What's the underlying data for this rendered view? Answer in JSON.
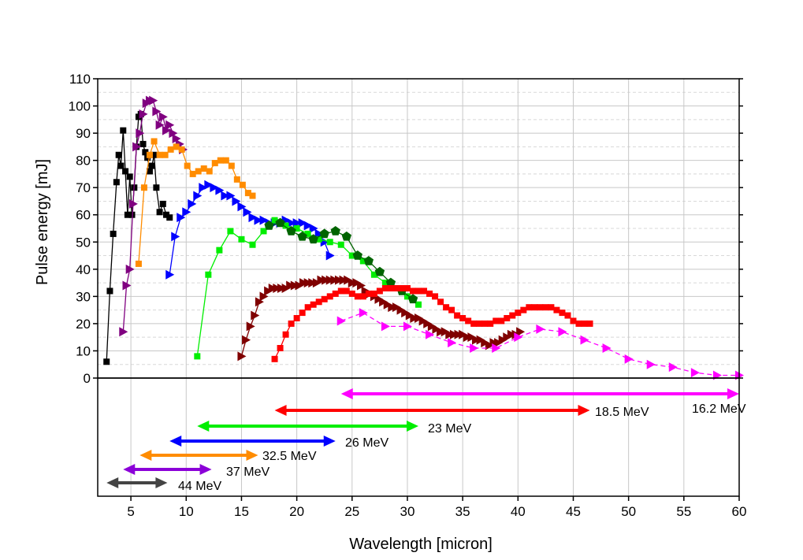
{
  "chart_data": {
    "type": "line",
    "xlabel": "Wavelength [micron]",
    "ylabel": "Pulse energy [mJ]",
    "xlim": [
      2,
      60
    ],
    "ylim": [
      0,
      110
    ],
    "xticks": [
      5,
      10,
      15,
      20,
      25,
      30,
      35,
      40,
      45,
      50,
      55,
      60
    ],
    "yticks": [
      0,
      10,
      20,
      30,
      40,
      50,
      60,
      70,
      80,
      90,
      100,
      110
    ],
    "grid": true,
    "series": [
      {
        "color": "#000000",
        "marker": "square",
        "dashed": false,
        "x": [
          2.8,
          3.1,
          3.4,
          3.7,
          3.9,
          4.1,
          4.3,
          4.5,
          4.7,
          4.9,
          5.1,
          5.3,
          5.5,
          5.7,
          5.9,
          6.1,
          6.3,
          6.5,
          6.7,
          6.9,
          7.1,
          7.3,
          7.6,
          7.9,
          8.2,
          8.5
        ],
        "y": [
          6,
          32,
          53,
          72,
          82,
          78,
          91,
          76,
          60,
          74,
          60,
          70,
          85,
          96,
          97,
          86,
          83,
          81,
          76,
          78,
          82,
          70,
          61,
          64,
          60,
          59
        ]
      },
      {
        "color": "#800080",
        "marker": "triangle-right",
        "dashed": false,
        "x": [
          4.3,
          4.6,
          4.9,
          5.2,
          5.5,
          5.8,
          6.1,
          6.4,
          6.7,
          7.0,
          7.3,
          7.6,
          7.9,
          8.2,
          8.5,
          8.8,
          9.1,
          9.4,
          9.7
        ],
        "y": [
          17,
          34,
          40,
          64,
          85,
          90,
          97,
          101,
          102,
          102,
          98,
          93,
          96,
          91,
          93,
          90,
          88,
          86,
          84
        ]
      },
      {
        "color": "#ff8c00",
        "marker": "square",
        "dashed": false,
        "x": [
          5.7,
          6.2,
          6.7,
          7.1,
          7.6,
          8.1,
          8.6,
          9.1,
          9.6,
          10.1,
          10.6,
          11.1,
          11.6,
          12.1,
          12.6,
          13.1,
          13.6,
          14.1,
          14.6,
          15.1,
          15.6,
          16.0
        ],
        "y": [
          42,
          70,
          82,
          87,
          82,
          82,
          84,
          85,
          84,
          78,
          75,
          76,
          77,
          76,
          79,
          80,
          80,
          78,
          73,
          71,
          68,
          67
        ]
      },
      {
        "color": "#0000ff",
        "marker": "triangle-right",
        "dashed": false,
        "x": [
          8.5,
          9.0,
          9.5,
          10.0,
          10.5,
          11.0,
          11.5,
          12.0,
          12.5,
          13.0,
          13.5,
          14.0,
          14.5,
          15.0,
          15.5,
          16.0,
          16.5,
          17.0,
          17.5,
          18.0,
          18.5,
          19.0,
          19.5,
          20.0,
          20.5,
          21.0,
          21.5,
          22.0,
          22.5,
          23.0
        ],
        "y": [
          38,
          52,
          59,
          61,
          64,
          67,
          70,
          71,
          70,
          69,
          67,
          67,
          65,
          63,
          61,
          59,
          58,
          58,
          57,
          57,
          57,
          58,
          57,
          57,
          57,
          56,
          55,
          53,
          50,
          45
        ]
      },
      {
        "color": "#00ee00",
        "marker": "square",
        "dashed": false,
        "x": [
          11.0,
          12.0,
          13.0,
          14.0,
          15.0,
          16.0,
          17.0,
          18.0,
          19.0,
          20.0,
          21.0,
          22.0,
          23.0,
          24.0,
          25.0,
          26.0,
          27.0,
          28.0,
          29.0,
          30.0,
          31.0
        ],
        "y": [
          8,
          38,
          47,
          54,
          51,
          49,
          54,
          58,
          56,
          55,
          53,
          51,
          50,
          49,
          45,
          43,
          38,
          35,
          33,
          30,
          27
        ]
      },
      {
        "color": "#006400",
        "marker": "pentagon",
        "dashed": false,
        "x": [
          17.5,
          18.5,
          19.5,
          20.5,
          21.5,
          22.5,
          23.5,
          24.5,
          25.5,
          26.5,
          27.5,
          28.5,
          29.5,
          30.5
        ],
        "y": [
          56,
          57,
          54,
          52,
          51,
          53,
          54,
          52,
          45,
          43,
          39,
          35,
          32,
          29
        ]
      },
      {
        "color": "#800000",
        "marker": "triangle-right",
        "dashed": false,
        "x": [
          15.0,
          15.4,
          15.8,
          16.2,
          16.6,
          17.0,
          17.4,
          17.8,
          18.2,
          18.6,
          19.0,
          19.4,
          19.8,
          20.2,
          20.6,
          21.0,
          21.4,
          21.8,
          22.2,
          22.6,
          23.0,
          23.4,
          23.8,
          24.2,
          24.6,
          25.0,
          25.4,
          25.8,
          26.2,
          26.6,
          27.0,
          27.4,
          27.8,
          28.2,
          28.6,
          29.0,
          29.4,
          29.8,
          30.2,
          30.6,
          31.0,
          31.4,
          31.8,
          32.2,
          32.6,
          33.0,
          33.4,
          33.8,
          34.2,
          34.6,
          35.0,
          35.4,
          35.8,
          36.2,
          36.6,
          37.0,
          37.4,
          37.8,
          38.2,
          38.6,
          39.0,
          39.4,
          39.8,
          40.2
        ],
        "y": [
          8,
          14,
          19,
          23,
          28,
          30,
          32,
          33,
          33,
          33,
          33,
          34,
          34,
          34,
          35,
          35,
          35,
          35,
          36,
          36,
          36,
          36,
          36,
          36,
          36,
          35,
          35,
          34,
          32,
          31,
          30,
          29,
          28,
          27,
          26,
          26,
          25,
          24,
          23,
          22,
          22,
          21,
          20,
          19,
          18,
          17,
          17,
          16,
          16,
          16,
          16,
          15,
          15,
          14,
          14,
          13,
          12,
          13,
          13,
          14,
          15,
          16,
          16,
          17
        ]
      },
      {
        "color": "#ff0000",
        "marker": "square",
        "dashed": false,
        "x": [
          18.0,
          18.5,
          19.0,
          19.5,
          20.0,
          20.5,
          21.0,
          21.5,
          22.0,
          22.5,
          23.0,
          23.5,
          24.0,
          24.5,
          25.0,
          25.5,
          26.0,
          26.5,
          27.0,
          27.5,
          28.0,
          28.5,
          29.0,
          29.5,
          30.0,
          30.5,
          31.0,
          31.5,
          32.0,
          32.5,
          33.0,
          33.5,
          34.0,
          34.5,
          35.0,
          35.5,
          36.0,
          36.5,
          37.0,
          37.5,
          38.0,
          38.5,
          39.0,
          39.5,
          40.0,
          40.5,
          41.0,
          41.5,
          42.0,
          42.5,
          43.0,
          43.5,
          44.0,
          44.5,
          45.0,
          45.5,
          46.0,
          46.5
        ],
        "y": [
          7,
          11,
          16,
          20,
          22,
          24,
          26,
          27,
          28,
          29,
          30,
          31,
          32,
          32,
          31,
          30,
          30,
          31,
          31,
          32,
          33,
          33,
          33,
          33,
          33,
          32,
          32,
          32,
          31,
          30,
          28,
          26,
          25,
          23,
          22,
          21,
          20,
          20,
          20,
          20,
          21,
          21,
          22,
          23,
          24,
          25,
          26,
          26,
          26,
          26,
          26,
          25,
          24,
          23,
          21,
          20,
          20,
          20
        ]
      },
      {
        "color": "#ff00ff",
        "marker": "triangle-right",
        "dashed": true,
        "x": [
          24.0,
          26.0,
          28.0,
          30.0,
          32.0,
          34.0,
          36.0,
          38.0,
          40.0,
          42.0,
          44.0,
          46.0,
          48.0,
          50.0,
          52.0,
          54.0,
          56.0,
          58.0,
          60.0
        ],
        "y": [
          21,
          24,
          19,
          19,
          16,
          13,
          11,
          11,
          15,
          18,
          17,
          14,
          11,
          7,
          5,
          4,
          2,
          1,
          1
        ]
      }
    ],
    "ranges": [
      {
        "label": "16.2 MeV",
        "color": "#ff00ff",
        "x": [
          24,
          60
        ]
      },
      {
        "label": "18.5 MeV",
        "color": "#ff0000",
        "x": [
          18,
          46.5
        ]
      },
      {
        "label": "23 MeV",
        "color": "#00ee00",
        "x": [
          11,
          31
        ]
      },
      {
        "label": "26 MeV",
        "color": "#0000ff",
        "x": [
          8.5,
          23.5
        ]
      },
      {
        "label": "32.5 MeV",
        "color": "#ff8c00",
        "x": [
          5.8,
          16.5
        ]
      },
      {
        "label": "37 MeV",
        "color": "#8b00d8",
        "x": [
          4.3,
          12.3
        ]
      },
      {
        "label": "44 MeV",
        "color": "#444444",
        "x": [
          2.8,
          8.3
        ]
      }
    ]
  }
}
